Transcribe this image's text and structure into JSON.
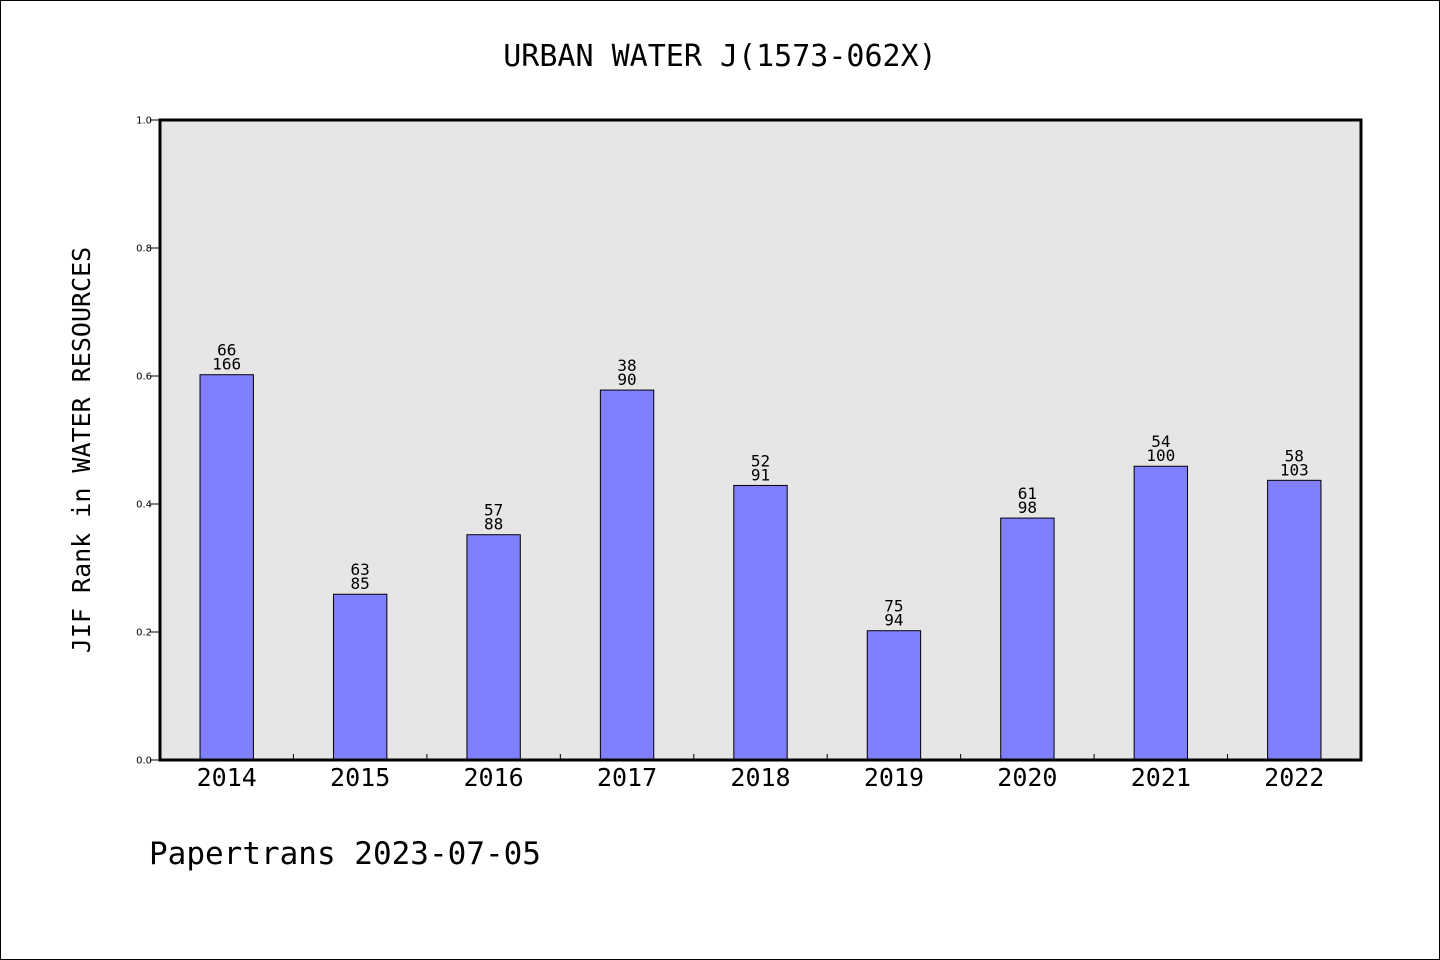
{
  "chart_data": {
    "type": "bar",
    "title": "URBAN WATER J(1573-062X)",
    "xlabel": "",
    "ylabel": "JIF Rank in WATER RESOURCES",
    "ylim": [
      0.0,
      1.0
    ],
    "yticks": [
      "0.0",
      "0.2",
      "0.4",
      "0.6",
      "0.8",
      "1.0"
    ],
    "categories": [
      "2014",
      "2015",
      "2016",
      "2017",
      "2018",
      "2019",
      "2020",
      "2021",
      "2022"
    ],
    "values": [
      0.602,
      0.259,
      0.352,
      0.578,
      0.429,
      0.202,
      0.378,
      0.459,
      0.437
    ],
    "ranks": [
      "66",
      "63",
      "57",
      "38",
      "52",
      "75",
      "61",
      "54",
      "58"
    ],
    "totals": [
      "166",
      "85",
      "88",
      "90",
      "91",
      "94",
      "98",
      "100",
      "103"
    ],
    "bar_color": "#8080ff",
    "plot_background": "#e6e6e6",
    "grid": false,
    "legend": "none"
  },
  "footer": "Papertrans 2023-07-05"
}
